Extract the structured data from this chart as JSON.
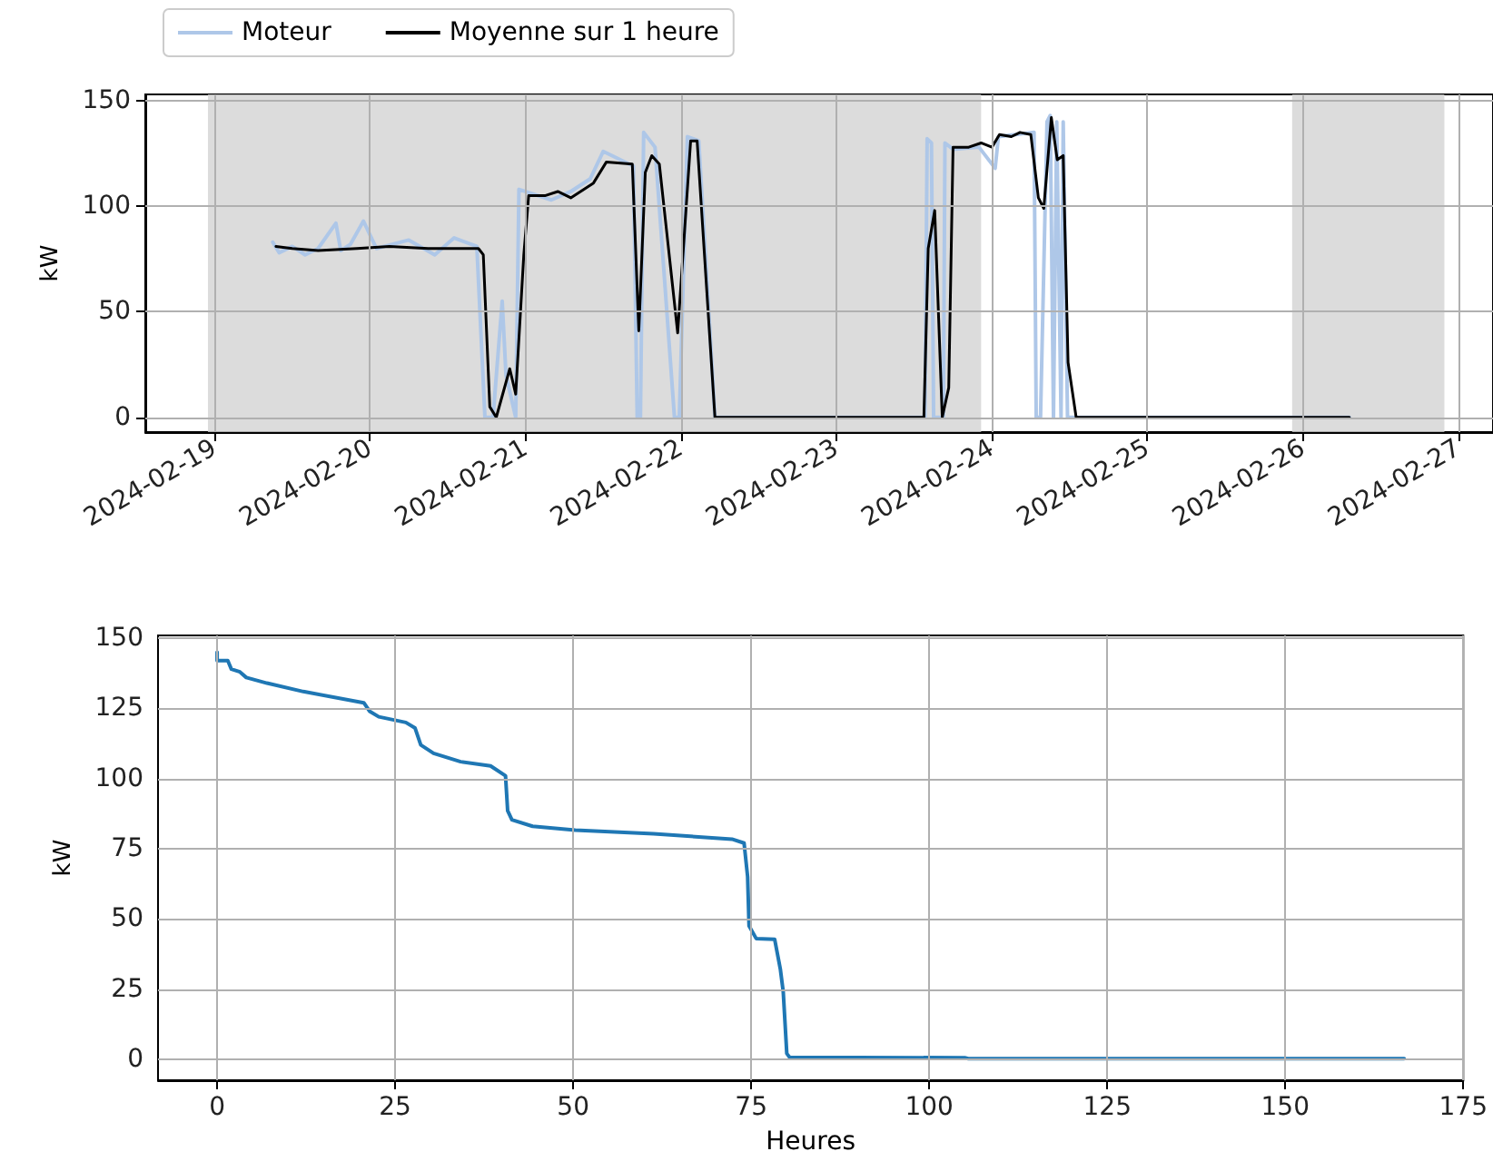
{
  "chart_data": [
    {
      "type": "line",
      "ylabel": "kW",
      "legend": "top left",
      "grid": true,
      "xlim": [
        "2024-02-18T13:20",
        "2024-02-27T05:20"
      ],
      "xticks": [
        "2024-02-19",
        "2024-02-20",
        "2024-02-21",
        "2024-02-22",
        "2024-02-23",
        "2024-02-24",
        "2024-02-25",
        "2024-02-26",
        "2024-02-27"
      ],
      "ylim": [
        -7,
        153
      ],
      "yticks": [
        0,
        50,
        100,
        150
      ],
      "bands": [
        {
          "axis": "x",
          "from": "2024-02-18T23:00",
          "to": "2024-02-23T22:20",
          "color": "#d3d3d3"
        },
        {
          "axis": "x",
          "from": "2024-02-25T22:20",
          "to": "2024-02-26T21:50",
          "color": "#d3d3d3"
        }
      ],
      "series": [
        {
          "name": "Moteur",
          "color": "#aec7e8",
          "x": [
            "2024-02-19T09:00",
            "2024-02-19T10:00",
            "2024-02-19T12:00",
            "2024-02-19T14:00",
            "2024-02-19T16:00",
            "2024-02-19T18:45",
            "2024-02-19T19:30",
            "2024-02-19T21:00",
            "2024-02-19T23:00",
            "2024-02-20T01:00",
            "2024-02-20T06:00",
            "2024-02-20T10:00",
            "2024-02-20T13:00",
            "2024-02-20T16:30",
            "2024-02-20T17:45",
            "2024-02-20T19:00",
            "2024-02-20T20:25",
            "2024-02-20T21:00",
            "2024-02-20T22:30",
            "2024-02-20T23:00",
            "2024-02-21T04:00",
            "2024-02-21T07:00",
            "2024-02-21T10:00",
            "2024-02-21T12:00",
            "2024-02-21T16:40",
            "2024-02-21T17:15",
            "2024-02-21T17:45",
            "2024-02-21T18:15",
            "2024-02-21T20:00",
            "2024-02-21T23:00",
            "2024-02-21T23:45",
            "2024-02-22T01:00",
            "2024-02-22T02:45",
            "2024-02-22T05:15",
            "2024-02-23T13:40",
            "2024-02-23T14:00",
            "2024-02-23T14:40",
            "2024-02-23T15:00",
            "2024-02-23T16:30",
            "2024-02-23T16:45",
            "2024-02-23T18:00",
            "2024-02-23T22:00",
            "2024-02-24T00:30",
            "2024-02-24T01:00",
            "2024-02-24T06:30",
            "2024-02-24T06:50",
            "2024-02-24T07:30",
            "2024-02-24T08:30",
            "2024-02-24T09:00",
            "2024-02-24T09:30",
            "2024-02-24T10:00",
            "2024-02-24T10:40",
            "2024-02-24T11:00",
            "2024-02-24T11:40",
            "2024-02-24T13:00",
            "2024-02-26T07:10"
          ],
          "values": [
            83,
            78,
            81,
            77,
            80,
            92,
            79,
            82,
            93,
            80,
            84,
            77,
            85,
            81,
            0,
            0,
            55,
            20,
            0,
            108,
            103,
            107,
            113,
            126,
            119,
            0,
            0,
            135,
            128,
            0,
            0,
            133,
            131,
            0,
            0,
            132,
            130,
            0,
            0,
            130,
            127,
            128,
            118,
            133,
            135,
            0,
            0,
            140,
            143,
            0,
            140,
            0,
            140,
            0,
            0,
            0
          ]
        },
        {
          "name": "Moyenne sur 1 heure",
          "color": "#000000",
          "x": [
            "2024-02-19T09:30",
            "2024-02-19T12:00",
            "2024-02-19T16:00",
            "2024-02-19T22:00",
            "2024-02-20T03:00",
            "2024-02-20T09:00",
            "2024-02-20T14:00",
            "2024-02-20T16:45",
            "2024-02-20T17:30",
            "2024-02-20T18:30",
            "2024-02-20T19:30",
            "2024-02-20T21:35",
            "2024-02-20T22:30",
            "2024-02-20T23:45",
            "2024-02-21T00:30",
            "2024-02-21T03:00",
            "2024-02-21T05:00",
            "2024-02-21T07:00",
            "2024-02-21T10:30",
            "2024-02-21T12:30",
            "2024-02-21T16:30",
            "2024-02-21T17:30",
            "2024-02-21T18:30",
            "2024-02-21T19:30",
            "2024-02-21T20:40",
            "2024-02-21T23:30",
            "2024-02-22T01:30",
            "2024-02-22T02:30",
            "2024-02-22T05:15",
            "2024-02-23T13:30",
            "2024-02-23T14:10",
            "2024-02-23T15:10",
            "2024-02-23T16:20",
            "2024-02-23T17:20",
            "2024-02-23T18:00",
            "2024-02-23T20:25",
            "2024-02-23T22:20",
            "2024-02-24T00:00",
            "2024-02-24T01:10",
            "2024-02-24T03:00",
            "2024-02-24T04:20",
            "2024-02-24T06:00",
            "2024-02-24T07:10",
            "2024-02-24T08:00",
            "2024-02-24T09:10",
            "2024-02-24T10:05",
            "2024-02-24T11:00",
            "2024-02-24T11:45",
            "2024-02-24T13:00",
            "2024-02-26T07:10"
          ],
          "values": [
            81,
            80,
            79,
            80,
            81,
            80,
            80,
            80,
            77,
            5,
            0,
            23,
            11,
            77,
            105,
            105,
            107,
            104,
            111,
            121,
            120,
            41,
            116,
            124,
            120,
            40,
            131,
            131,
            0,
            0,
            80,
            98,
            0,
            14,
            128,
            128,
            130,
            128,
            134,
            133,
            135,
            134,
            104,
            99,
            142,
            122,
            124,
            26,
            0,
            0
          ]
        }
      ]
    },
    {
      "type": "line",
      "xlabel": "Heures",
      "ylabel": "kW",
      "grid": true,
      "xlim": [
        -8.3,
        175
      ],
      "xticks": [
        0,
        25,
        50,
        75,
        100,
        125,
        150,
        175
      ],
      "ylim": [
        -7.5,
        151
      ],
      "yticks": [
        0,
        25,
        50,
        75,
        100,
        125,
        150
      ],
      "series": [
        {
          "color": "#1f77b4",
          "x": [
            0,
            0,
            1.5,
            2,
            3.2,
            4.1,
            7,
            12.1,
            20.6,
            21.4,
            22.7,
            26.5,
            27.8,
            28.6,
            30.4,
            34.2,
            38.4,
            40.5,
            40.8,
            41.4,
            44.3,
            50.3,
            61.3,
            72.3,
            74,
            74.5,
            74.7,
            75.7,
            78.3,
            79.1,
            79.5,
            80,
            80.4,
            105,
            105.5,
            166.7
          ],
          "values": [
            145,
            142,
            142,
            139,
            138,
            136,
            134,
            131,
            127,
            124,
            122,
            120,
            118,
            112,
            109,
            106,
            104.5,
            101,
            88.5,
            85.3,
            83,
            81.6,
            80.3,
            78.4,
            77,
            65,
            47.5,
            43,
            42.7,
            32,
            24,
            2,
            0.7,
            0.5,
            0.2,
            0.2
          ]
        }
      ]
    }
  ]
}
